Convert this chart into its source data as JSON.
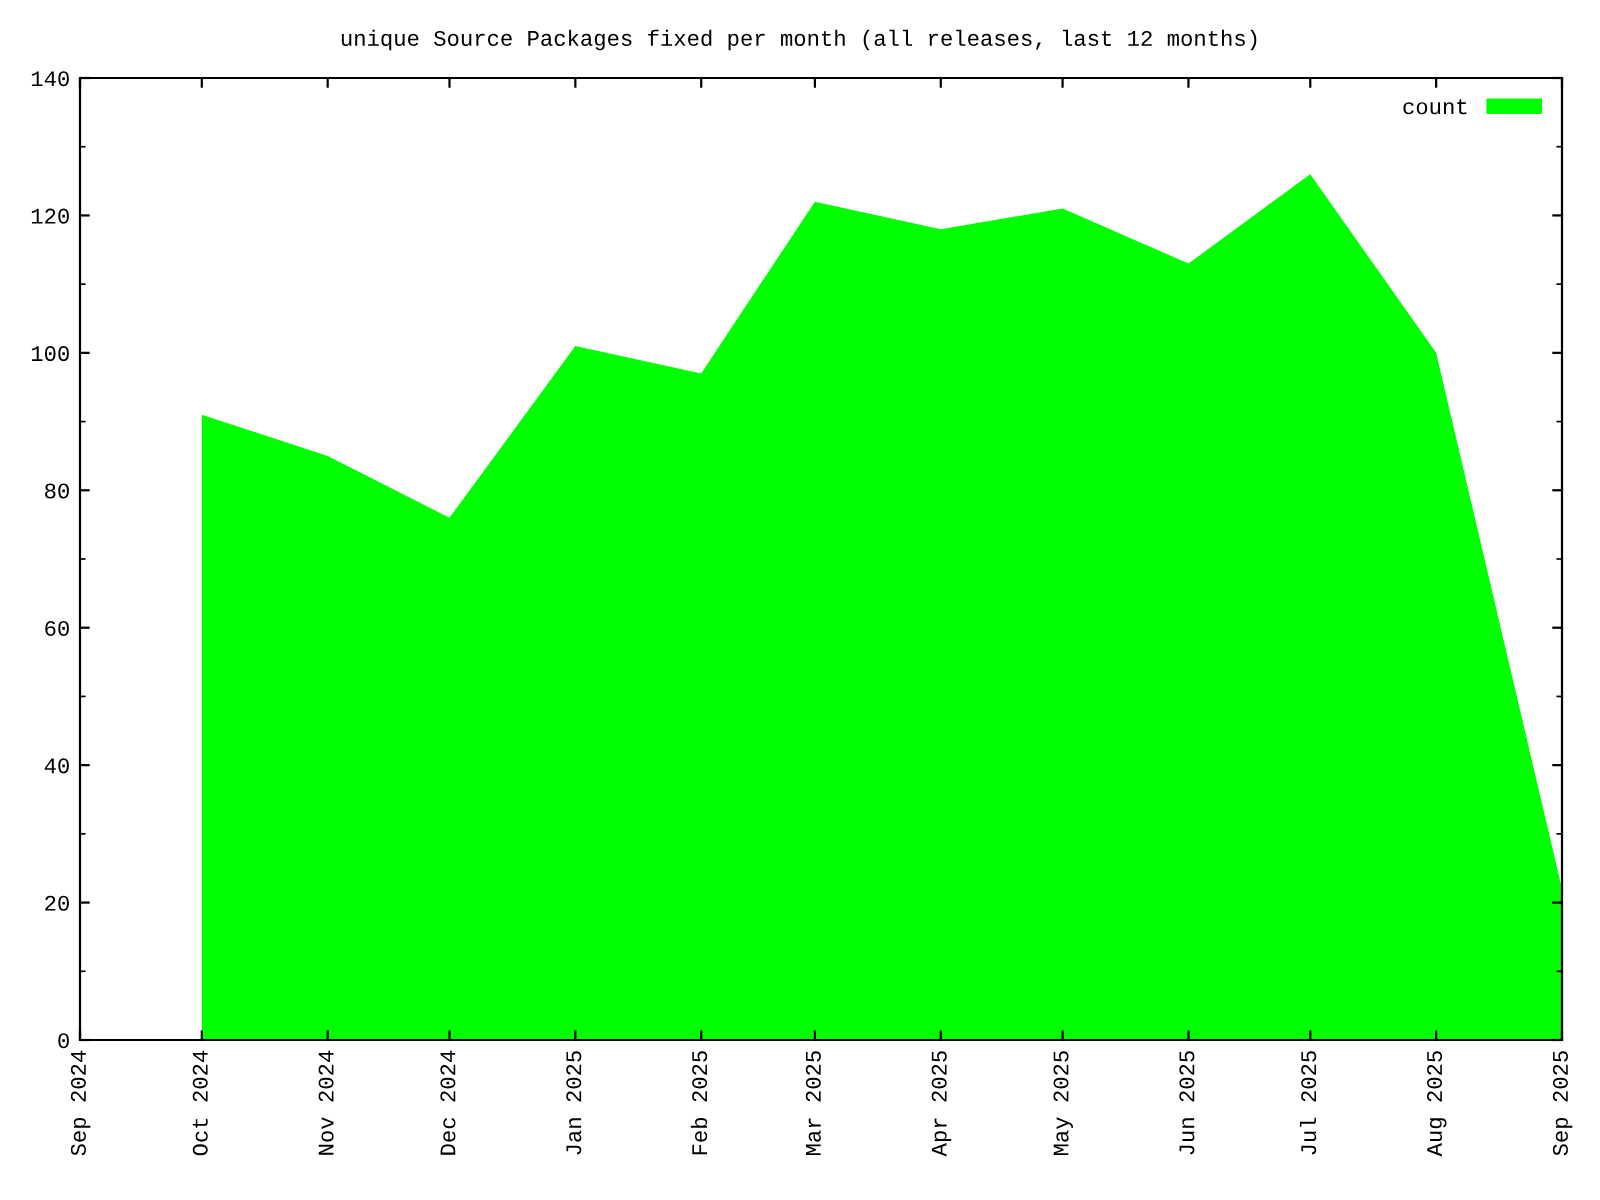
{
  "chart_data": {
    "type": "area",
    "title": "unique Source Packages fixed per month (all releases, last 12 months)",
    "x": [
      "2024-10",
      "2024-11",
      "2024-12",
      "2025-01",
      "2025-02",
      "2025-03",
      "2025-04",
      "2025-05",
      "2025-06",
      "2025-07",
      "2025-08",
      "2025-09"
    ],
    "series": [
      {
        "name": "count",
        "color": "#00ff00",
        "values": [
          91,
          85,
          76,
          101,
          97,
          122,
          118,
          121,
          113,
          126,
          100,
          22
        ]
      }
    ],
    "xlim": [
      "2024-09",
      "2025-09"
    ],
    "xticks": [
      {
        "value": "2024-09",
        "label": "Sep 2024"
      },
      {
        "value": "2024-10",
        "label": "Oct 2024"
      },
      {
        "value": "2024-11",
        "label": "Nov 2024"
      },
      {
        "value": "2024-12",
        "label": "Dec 2024"
      },
      {
        "value": "2025-01",
        "label": "Jan 2025"
      },
      {
        "value": "2025-02",
        "label": "Feb 2025"
      },
      {
        "value": "2025-03",
        "label": "Mar 2025"
      },
      {
        "value": "2025-04",
        "label": "Apr 2025"
      },
      {
        "value": "2025-05",
        "label": "May 2025"
      },
      {
        "value": "2025-06",
        "label": "Jun 2025"
      },
      {
        "value": "2025-07",
        "label": "Jul 2025"
      },
      {
        "value": "2025-08",
        "label": "Aug 2025"
      },
      {
        "value": "2025-09",
        "label": "Sep 2025"
      }
    ],
    "ylim": [
      0,
      140
    ],
    "yticks": [
      0,
      20,
      40,
      60,
      80,
      100,
      120,
      140
    ],
    "grid": false,
    "legend": "top right"
  }
}
